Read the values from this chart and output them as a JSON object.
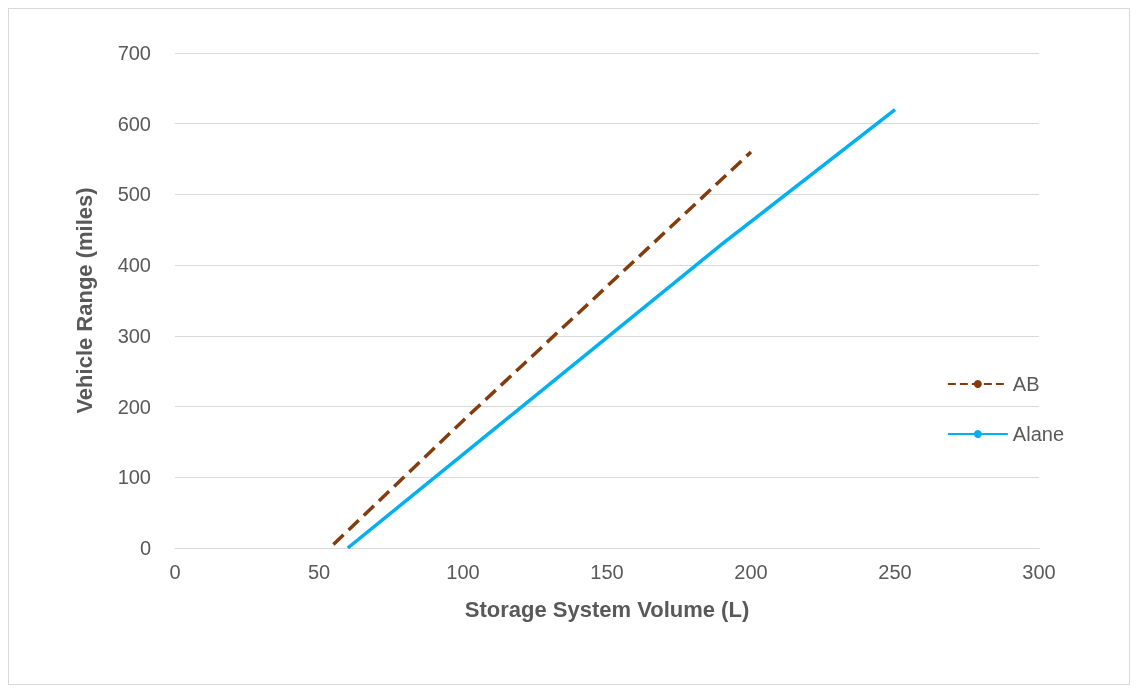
{
  "chart_data": {
    "type": "line",
    "xlabel": "Storage System Volume (L)",
    "ylabel": "Vehicle Range (miles)",
    "series": [
      {
        "name": "AB",
        "color": "#843c0c",
        "line_style": "dashed",
        "x": [
          55,
          100,
          150,
          200
        ],
        "values": [
          5,
          180,
          370,
          560
        ]
      },
      {
        "name": "Alane",
        "color": "#00b0f0",
        "line_style": "solid",
        "x": [
          60,
          190,
          250
        ],
        "values": [
          0,
          430,
          620
        ]
      }
    ],
    "xlim": [
      0,
      300
    ],
    "xticks": [
      0,
      50,
      100,
      150,
      200,
      250,
      300
    ],
    "ylim": [
      0,
      700
    ],
    "yticks": [
      0,
      100,
      200,
      300,
      400,
      500,
      600,
      700
    ],
    "grid": "y",
    "legend": "right",
    "marker": "none"
  }
}
